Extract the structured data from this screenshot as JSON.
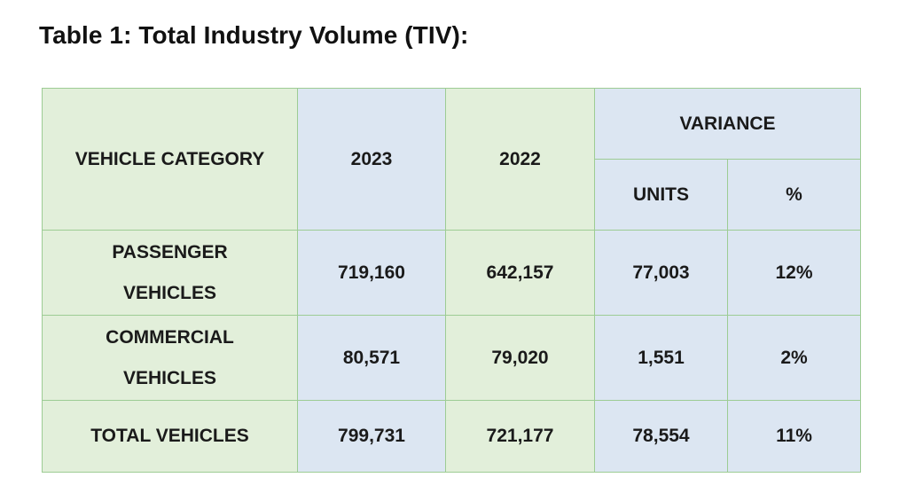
{
  "title": "Table 1: Total Industry Volume (TIV):",
  "table": {
    "headers": {
      "category": "VEHICLE CATEGORY",
      "year_2023": "2023",
      "year_2022": "2022",
      "variance": "VARIANCE",
      "units": "UNITS",
      "percent": "%"
    },
    "rows": [
      {
        "category_line1": "PASSENGER",
        "category_line2": "VEHICLES",
        "v2023": "719,160",
        "v2022": "642,157",
        "units": "77,003",
        "percent": "12%"
      },
      {
        "category_line1": "COMMERCIAL",
        "category_line2": "VEHICLES",
        "v2023": "80,571",
        "v2022": "79,020",
        "units": "1,551",
        "percent": "2%"
      },
      {
        "category_line1": "TOTAL VEHICLES",
        "v2023": "799,731",
        "v2022": "721,177",
        "units": "78,554",
        "percent": "11%"
      }
    ]
  },
  "colors": {
    "green_cell": "#e2efda",
    "blue_cell": "#dce6f2",
    "border": "#9dcc94",
    "year_2022_text": "#1f3864"
  }
}
